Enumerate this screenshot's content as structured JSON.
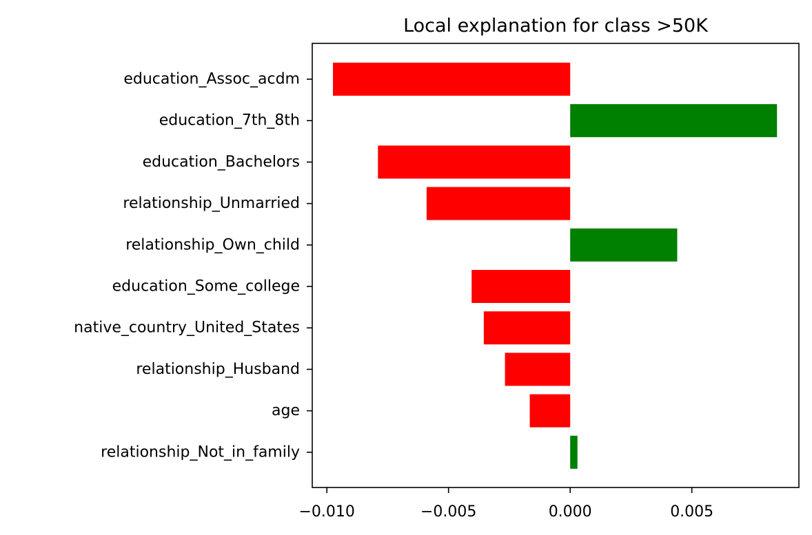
{
  "chart_data": {
    "type": "bar",
    "orientation": "horizontal",
    "title": "Local explanation for class >50K",
    "xlabel": "",
    "ylabel": "",
    "xlim": [
      -0.0106,
      0.0094
    ],
    "xticks": [
      -0.01,
      -0.005,
      0.0,
      0.005
    ],
    "xtick_labels": [
      "−0.010",
      "−0.005",
      "0.000",
      "0.005"
    ],
    "categories": [
      "education_Assoc_acdm",
      "education_7th_8th",
      "education_Bachelors",
      "relationship_Unmarried",
      "relationship_Own_child",
      "education_Some_college",
      "native_country_United_States",
      "relationship_Husband",
      "age",
      "relationship_Not_in_family"
    ],
    "values": [
      -0.00975,
      0.0085,
      -0.0079,
      -0.0059,
      0.0044,
      -0.00405,
      -0.00355,
      -0.00268,
      -0.00166,
      0.0003
    ],
    "colors": {
      "positive": "#008000",
      "negative": "#ff0000"
    },
    "grid": false,
    "legend": "none"
  }
}
